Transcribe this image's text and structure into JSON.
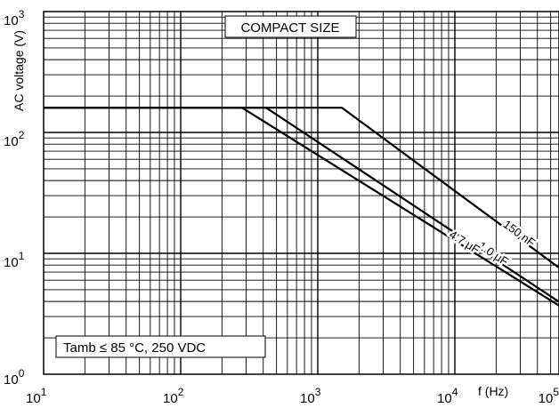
{
  "chart_data": {
    "type": "line",
    "title": "",
    "xlabel": "f (Hz)",
    "ylabel": "AC voltage (V)",
    "x_scale": "log",
    "y_scale": "log",
    "xlim": [
      10,
      100000
    ],
    "ylim": [
      1,
      1000
    ],
    "x_ticks": [
      {
        "base": "10",
        "exp": "1"
      },
      {
        "base": "10",
        "exp": "2"
      },
      {
        "base": "10",
        "exp": "3"
      },
      {
        "base": "10",
        "exp": "4"
      },
      {
        "base": "10",
        "exp": "5"
      }
    ],
    "y_ticks": [
      {
        "base": "10",
        "exp": "0"
      },
      {
        "base": "10",
        "exp": "1"
      },
      {
        "base": "10",
        "exp": "2"
      },
      {
        "base": "10",
        "exp": "3"
      }
    ],
    "grid": true,
    "annotations": {
      "header_box": "COMPACT SIZE",
      "condition_box": "Tamb  ≤ 85 °C, 250 VDC"
    },
    "series": [
      {
        "name": "150 nF",
        "x": [
          10,
          1500,
          100000
        ],
        "y": [
          160,
          160,
          4.8
        ]
      },
      {
        "name": "1.0 μF",
        "x": [
          10,
          420,
          80000
        ],
        "y": [
          160,
          160,
          3.1
        ]
      },
      {
        "name": "4.7 μF",
        "x": [
          10,
          280,
          100000
        ],
        "y": [
          160,
          160,
          2.5
        ]
      }
    ],
    "colors": {
      "line": "#000000",
      "grid": "#000000",
      "background": "#ffffff"
    }
  }
}
